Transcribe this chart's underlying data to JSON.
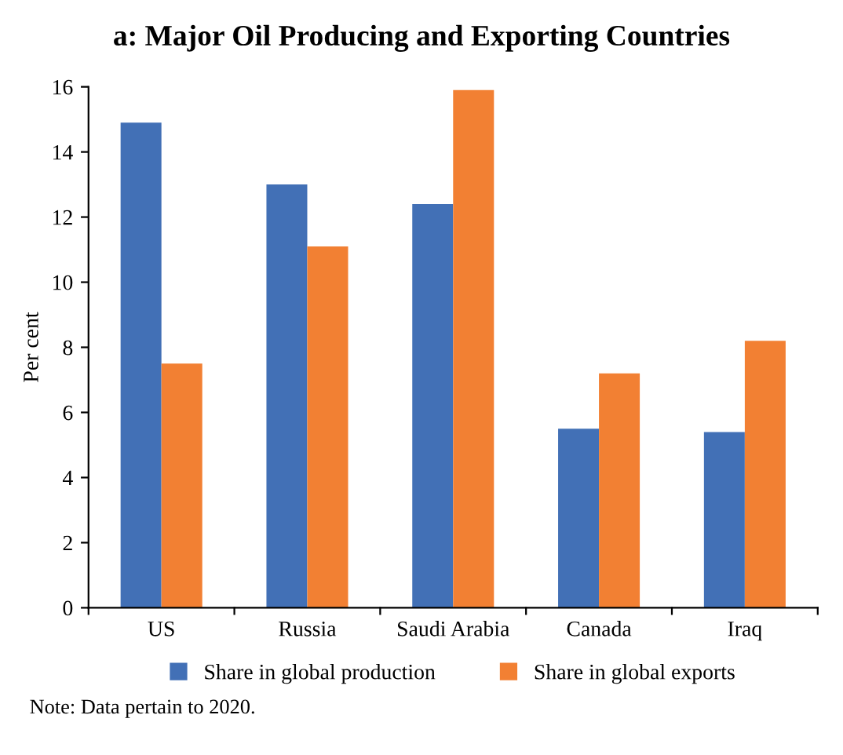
{
  "chart_data": {
    "type": "bar",
    "title": "a: Major Oil Producing and Exporting Countries",
    "ylabel": "Per cent",
    "categories": [
      "US",
      "Russia",
      "Saudi Arabia",
      "Canada",
      "Iraq"
    ],
    "series": [
      {
        "name": "Share in global production",
        "color": "#4270b6",
        "values": [
          14.9,
          13.0,
          12.4,
          5.5,
          5.4
        ]
      },
      {
        "name": "Share in global exports",
        "color": "#f28033",
        "values": [
          7.5,
          11.1,
          15.9,
          7.2,
          8.2
        ]
      }
    ],
    "ylim": [
      0,
      16
    ],
    "yticks": [
      0,
      2,
      4,
      6,
      8,
      10,
      12,
      14,
      16
    ],
    "grid": false,
    "legend": "bottom",
    "annotations": [
      "Note: Data pertain to 2020."
    ]
  }
}
